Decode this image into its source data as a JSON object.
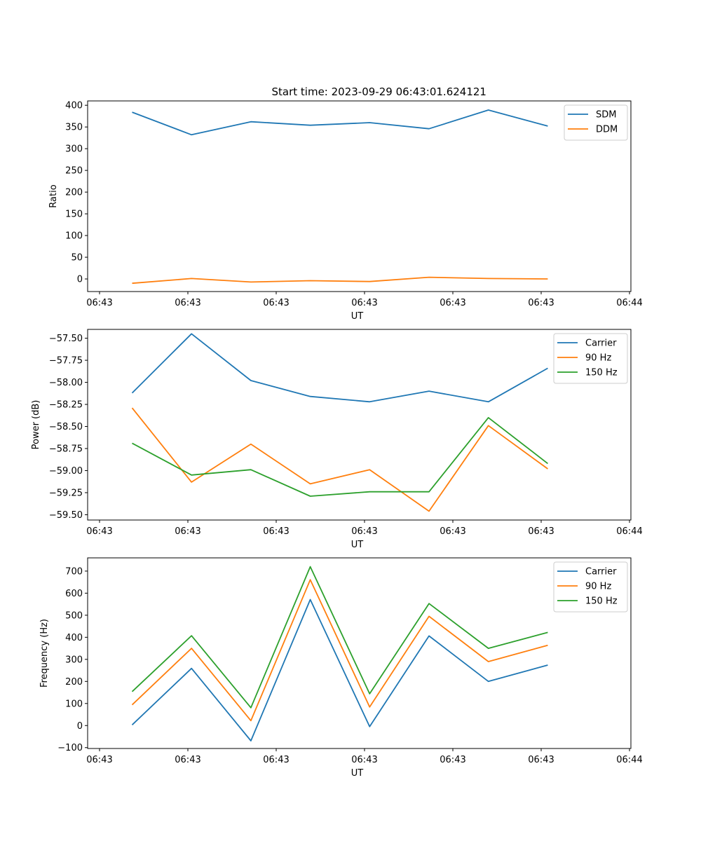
{
  "chart_data": [
    {
      "type": "line",
      "title": "Start time: 2023-09-29 06:43:01.624121",
      "xlabel": "UT",
      "ylabel": "Ratio",
      "x_tick_labels": [
        "06:43",
        "06:43",
        "06:43",
        "06:43",
        "06:43",
        "06:43",
        "06:44"
      ],
      "y_ticks": [
        0,
        50,
        100,
        150,
        200,
        250,
        300,
        350,
        400
      ],
      "y_tick_labels": [
        "0",
        "50",
        "100",
        "150",
        "200",
        "250",
        "300",
        "350",
        "400"
      ],
      "ylim": [
        -29,
        410
      ],
      "x": [
        1,
        2,
        3,
        4,
        5,
        6,
        7,
        8
      ],
      "xlim": [
        0.25,
        9.4
      ],
      "legend_position": "top-right",
      "series": [
        {
          "name": "SDM",
          "color": "#1f77b4",
          "values": [
            384,
            332,
            362,
            354,
            360,
            346,
            389,
            352
          ]
        },
        {
          "name": "DDM",
          "color": "#ff7f0e",
          "values": [
            -10,
            1,
            -7,
            -4,
            -6,
            4,
            1,
            0
          ]
        }
      ]
    },
    {
      "type": "line",
      "title": "",
      "xlabel": "UT",
      "ylabel": "Power (dB)",
      "x_tick_labels": [
        "06:43",
        "06:43",
        "06:43",
        "06:43",
        "06:43",
        "06:43",
        "06:44"
      ],
      "y_ticks": [
        -57.5,
        -57.75,
        -58.0,
        -58.25,
        -58.5,
        -58.75,
        -59.0,
        -59.25,
        -59.5
      ],
      "y_tick_labels": [
        "−57.50",
        "−57.75",
        "−58.00",
        "−58.25",
        "−58.50",
        "−58.75",
        "−59.00",
        "−59.25",
        "−59.50"
      ],
      "ylim": [
        -59.56,
        -57.4
      ],
      "x": [
        1,
        2,
        3,
        4,
        5,
        6,
        7,
        8
      ],
      "xlim": [
        0.25,
        9.4
      ],
      "legend_position": "top-right",
      "series": [
        {
          "name": "Carrier",
          "color": "#1f77b4",
          "values": [
            -58.12,
            -57.45,
            -57.98,
            -58.16,
            -58.22,
            -58.1,
            -58.22,
            -57.84
          ]
        },
        {
          "name": "90 Hz",
          "color": "#ff7f0e",
          "values": [
            -58.29,
            -59.13,
            -58.7,
            -59.15,
            -58.99,
            -59.46,
            -58.49,
            -58.98
          ]
        },
        {
          "name": "150 Hz",
          "color": "#2ca02c",
          "values": [
            -58.69,
            -59.05,
            -58.99,
            -59.29,
            -59.24,
            -59.24,
            -58.4,
            -58.92
          ]
        }
      ]
    },
    {
      "type": "line",
      "title": "",
      "xlabel": "UT",
      "ylabel": "Frequency (Hz)",
      "x_tick_labels": [
        "06:43",
        "06:43",
        "06:43",
        "06:43",
        "06:43",
        "06:43",
        "06:44"
      ],
      "y_ticks": [
        -100,
        0,
        100,
        200,
        300,
        400,
        500,
        600,
        700
      ],
      "y_tick_labels": [
        "−100",
        "0",
        "100",
        "200",
        "300",
        "400",
        "500",
        "600",
        "700"
      ],
      "ylim": [
        -104,
        760
      ],
      "x": [
        1,
        2,
        3,
        4,
        5,
        6,
        7,
        8
      ],
      "xlim": [
        0.25,
        9.4
      ],
      "legend_position": "top-right",
      "series": [
        {
          "name": "Carrier",
          "color": "#1f77b4",
          "values": [
            3,
            259,
            -69,
            571,
            -5,
            406,
            200,
            274
          ]
        },
        {
          "name": "90 Hz",
          "color": "#ff7f0e",
          "values": [
            94,
            350,
            22,
            661,
            84,
            495,
            290,
            364
          ]
        },
        {
          "name": "150 Hz",
          "color": "#2ca02c",
          "values": [
            154,
            407,
            81,
            720,
            144,
            553,
            350,
            422
          ]
        }
      ]
    }
  ]
}
